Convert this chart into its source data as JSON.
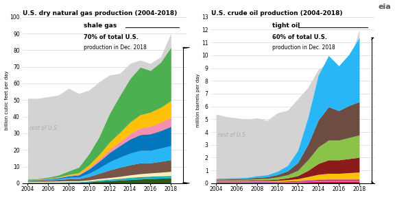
{
  "years": [
    2004,
    2005,
    2006,
    2007,
    2008,
    2009,
    2010,
    2011,
    2012,
    2013,
    2014,
    2015,
    2016,
    2017,
    2018
  ],
  "gas_total": [
    51,
    51,
    52,
    53,
    57,
    54,
    56,
    61,
    65,
    66,
    72,
    74,
    72,
    76,
    90
  ],
  "gas_layers": {
    "dark_green": [
      0.3,
      0.3,
      0.4,
      0.4,
      0.5,
      0.5,
      0.8,
      1.2,
      1.5,
      1.8,
      2.2,
      2.5,
      2.8,
      3.0,
      3.2
    ],
    "cyan_thin": [
      0.15,
      0.15,
      0.15,
      0.15,
      0.15,
      0.15,
      0.2,
      0.3,
      0.4,
      0.5,
      0.6,
      0.6,
      0.6,
      0.6,
      0.6
    ],
    "teal_thin": [
      0.15,
      0.15,
      0.15,
      0.15,
      0.2,
      0.2,
      0.3,
      0.4,
      0.5,
      0.6,
      0.7,
      0.8,
      0.8,
      0.8,
      0.8
    ],
    "cream": [
      0.5,
      0.5,
      0.5,
      0.6,
      0.6,
      0.6,
      0.7,
      0.9,
      1.0,
      1.2,
      1.5,
      1.8,
      2.0,
      2.2,
      2.5
    ],
    "brown": [
      0.5,
      0.6,
      0.7,
      0.9,
      1.2,
      1.3,
      2.0,
      3.2,
      4.5,
      5.5,
      6.0,
      6.5,
      6.0,
      6.5,
      7.0
    ],
    "light_blue": [
      0.3,
      0.3,
      0.4,
      0.6,
      0.9,
      1.0,
      2.0,
      3.2,
      5.0,
      6.0,
      7.0,
      7.5,
      7.5,
      8.0,
      8.5
    ],
    "dark_blue": [
      0.2,
      0.2,
      0.3,
      0.5,
      0.8,
      1.2,
      2.5,
      4.0,
      5.5,
      7.0,
      8.5,
      9.5,
      10.0,
      10.5,
      11.5
    ],
    "pink": [
      0.1,
      0.1,
      0.15,
      0.2,
      0.3,
      0.5,
      0.8,
      1.2,
      1.8,
      2.4,
      3.2,
      4.0,
      4.5,
      5.0,
      5.5
    ],
    "yellow": [
      0.1,
      0.1,
      0.2,
      0.3,
      0.6,
      0.9,
      1.8,
      3.0,
      4.5,
      5.5,
      7.0,
      8.0,
      8.5,
      9.0,
      10.0
    ],
    "bright_green": [
      0.2,
      0.3,
      0.6,
      1.0,
      2.0,
      3.2,
      6.5,
      10.5,
      17.0,
      22.0,
      26.0,
      28.5,
      25.0,
      27.0,
      32.0
    ]
  },
  "gas_colors": [
    "#2d5a1b",
    "#00bcd4",
    "#26a69a",
    "#f5f0c0",
    "#795548",
    "#29b6f6",
    "#0277bd",
    "#f48fb1",
    "#ffc107",
    "#4caf50"
  ],
  "gas_ylabel": "billion cubic feet per day",
  "gas_title": "U.S. dry natural gas production (2004-2018)",
  "gas_ylim": [
    0,
    100
  ],
  "gas_yticks": [
    0,
    10,
    20,
    30,
    40,
    50,
    60,
    70,
    80,
    90,
    100
  ],
  "gas_label": "shale gas",
  "gas_pct": "70%",
  "gas_rest_label": "rest of U.S.",
  "oil_total": [
    5.4,
    5.2,
    5.1,
    5.0,
    5.1,
    4.9,
    5.5,
    5.7,
    6.6,
    7.5,
    8.9,
    9.4,
    8.8,
    9.4,
    12.0
  ],
  "oil_layers": {
    "dark_base": [
      0.05,
      0.05,
      0.05,
      0.05,
      0.05,
      0.05,
      0.05,
      0.05,
      0.05,
      0.06,
      0.07,
      0.07,
      0.07,
      0.07,
      0.07
    ],
    "magenta_thin": [
      0.03,
      0.03,
      0.03,
      0.03,
      0.03,
      0.03,
      0.04,
      0.04,
      0.05,
      0.06,
      0.08,
      0.09,
      0.09,
      0.09,
      0.09
    ],
    "pink_thin": [
      0.02,
      0.02,
      0.02,
      0.02,
      0.02,
      0.02,
      0.02,
      0.03,
      0.04,
      0.05,
      0.06,
      0.07,
      0.07,
      0.07,
      0.07
    ],
    "purple_thin": [
      0.02,
      0.02,
      0.02,
      0.02,
      0.03,
      0.03,
      0.04,
      0.05,
      0.06,
      0.07,
      0.08,
      0.09,
      0.09,
      0.09,
      0.09
    ],
    "yellow": [
      0.05,
      0.05,
      0.05,
      0.05,
      0.06,
      0.06,
      0.07,
      0.1,
      0.15,
      0.28,
      0.4,
      0.45,
      0.45,
      0.5,
      0.55
    ],
    "dark_red": [
      0.05,
      0.05,
      0.05,
      0.05,
      0.06,
      0.07,
      0.09,
      0.14,
      0.24,
      0.48,
      0.85,
      1.05,
      1.05,
      1.1,
      1.15
    ],
    "light_green": [
      0.05,
      0.06,
      0.07,
      0.08,
      0.1,
      0.12,
      0.18,
      0.25,
      0.42,
      0.85,
      1.3,
      1.55,
      1.55,
      1.65,
      1.75
    ],
    "brown": [
      0.05,
      0.05,
      0.06,
      0.07,
      0.1,
      0.12,
      0.18,
      0.3,
      0.6,
      1.2,
      2.1,
      2.6,
      2.3,
      2.5,
      2.6
    ],
    "blue": [
      0.05,
      0.06,
      0.07,
      0.08,
      0.12,
      0.15,
      0.25,
      0.42,
      0.95,
      2.1,
      3.5,
      4.0,
      3.5,
      4.0,
      5.0
    ]
  },
  "oil_colors": [
    "#1a1a1a",
    "#e91e63",
    "#f06292",
    "#9c27b0",
    "#ffc107",
    "#8b1a1a",
    "#8bc34a",
    "#6d4c41",
    "#29b6f6"
  ],
  "oil_ylabel": "million barrels per day",
  "oil_title": "U.S. crude oil production (2004-2018)",
  "oil_ylim": [
    0,
    13
  ],
  "oil_yticks": [
    0,
    1,
    2,
    3,
    4,
    5,
    6,
    7,
    8,
    9,
    10,
    11,
    12,
    13
  ],
  "oil_label": "tight oil",
  "oil_pct": "60%",
  "oil_rest_label": "rest of U.S.",
  "rest_color": "#d3d3d3",
  "bg_color": "#ffffff",
  "xlabel_years": [
    2004,
    2006,
    2008,
    2010,
    2012,
    2014,
    2016,
    2018
  ]
}
